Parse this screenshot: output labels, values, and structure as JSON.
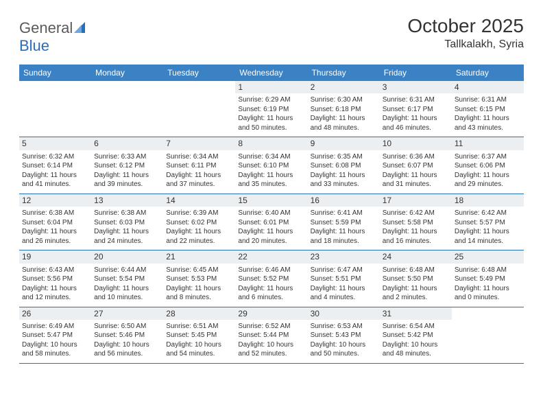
{
  "logo": {
    "text_general": "General",
    "text_blue": "Blue"
  },
  "header": {
    "month_title": "October 2025",
    "location": "Tallkalakh, Syria"
  },
  "colors": {
    "header_bg": "#3b82c4",
    "header_text": "#ffffff",
    "daynum_bg": "#eceff1",
    "border": "#2a6db8",
    "text": "#333333",
    "logo_gray": "#5a5a5a",
    "logo_blue": "#2a6db8",
    "page_bg": "#ffffff"
  },
  "day_names": [
    "Sunday",
    "Monday",
    "Tuesday",
    "Wednesday",
    "Thursday",
    "Friday",
    "Saturday"
  ],
  "weeks": [
    [
      {
        "blank": true
      },
      {
        "blank": true
      },
      {
        "blank": true
      },
      {
        "day": "1",
        "sunrise": "Sunrise: 6:29 AM",
        "sunset": "Sunset: 6:19 PM",
        "daylight1": "Daylight: 11 hours",
        "daylight2": "and 50 minutes."
      },
      {
        "day": "2",
        "sunrise": "Sunrise: 6:30 AM",
        "sunset": "Sunset: 6:18 PM",
        "daylight1": "Daylight: 11 hours",
        "daylight2": "and 48 minutes."
      },
      {
        "day": "3",
        "sunrise": "Sunrise: 6:31 AM",
        "sunset": "Sunset: 6:17 PM",
        "daylight1": "Daylight: 11 hours",
        "daylight2": "and 46 minutes."
      },
      {
        "day": "4",
        "sunrise": "Sunrise: 6:31 AM",
        "sunset": "Sunset: 6:15 PM",
        "daylight1": "Daylight: 11 hours",
        "daylight2": "and 43 minutes."
      }
    ],
    [
      {
        "day": "5",
        "sunrise": "Sunrise: 6:32 AM",
        "sunset": "Sunset: 6:14 PM",
        "daylight1": "Daylight: 11 hours",
        "daylight2": "and 41 minutes."
      },
      {
        "day": "6",
        "sunrise": "Sunrise: 6:33 AM",
        "sunset": "Sunset: 6:12 PM",
        "daylight1": "Daylight: 11 hours",
        "daylight2": "and 39 minutes."
      },
      {
        "day": "7",
        "sunrise": "Sunrise: 6:34 AM",
        "sunset": "Sunset: 6:11 PM",
        "daylight1": "Daylight: 11 hours",
        "daylight2": "and 37 minutes."
      },
      {
        "day": "8",
        "sunrise": "Sunrise: 6:34 AM",
        "sunset": "Sunset: 6:10 PM",
        "daylight1": "Daylight: 11 hours",
        "daylight2": "and 35 minutes."
      },
      {
        "day": "9",
        "sunrise": "Sunrise: 6:35 AM",
        "sunset": "Sunset: 6:08 PM",
        "daylight1": "Daylight: 11 hours",
        "daylight2": "and 33 minutes."
      },
      {
        "day": "10",
        "sunrise": "Sunrise: 6:36 AM",
        "sunset": "Sunset: 6:07 PM",
        "daylight1": "Daylight: 11 hours",
        "daylight2": "and 31 minutes."
      },
      {
        "day": "11",
        "sunrise": "Sunrise: 6:37 AM",
        "sunset": "Sunset: 6:06 PM",
        "daylight1": "Daylight: 11 hours",
        "daylight2": "and 29 minutes."
      }
    ],
    [
      {
        "day": "12",
        "sunrise": "Sunrise: 6:38 AM",
        "sunset": "Sunset: 6:04 PM",
        "daylight1": "Daylight: 11 hours",
        "daylight2": "and 26 minutes."
      },
      {
        "day": "13",
        "sunrise": "Sunrise: 6:38 AM",
        "sunset": "Sunset: 6:03 PM",
        "daylight1": "Daylight: 11 hours",
        "daylight2": "and 24 minutes."
      },
      {
        "day": "14",
        "sunrise": "Sunrise: 6:39 AM",
        "sunset": "Sunset: 6:02 PM",
        "daylight1": "Daylight: 11 hours",
        "daylight2": "and 22 minutes."
      },
      {
        "day": "15",
        "sunrise": "Sunrise: 6:40 AM",
        "sunset": "Sunset: 6:01 PM",
        "daylight1": "Daylight: 11 hours",
        "daylight2": "and 20 minutes."
      },
      {
        "day": "16",
        "sunrise": "Sunrise: 6:41 AM",
        "sunset": "Sunset: 5:59 PM",
        "daylight1": "Daylight: 11 hours",
        "daylight2": "and 18 minutes."
      },
      {
        "day": "17",
        "sunrise": "Sunrise: 6:42 AM",
        "sunset": "Sunset: 5:58 PM",
        "daylight1": "Daylight: 11 hours",
        "daylight2": "and 16 minutes."
      },
      {
        "day": "18",
        "sunrise": "Sunrise: 6:42 AM",
        "sunset": "Sunset: 5:57 PM",
        "daylight1": "Daylight: 11 hours",
        "daylight2": "and 14 minutes."
      }
    ],
    [
      {
        "day": "19",
        "sunrise": "Sunrise: 6:43 AM",
        "sunset": "Sunset: 5:56 PM",
        "daylight1": "Daylight: 11 hours",
        "daylight2": "and 12 minutes."
      },
      {
        "day": "20",
        "sunrise": "Sunrise: 6:44 AM",
        "sunset": "Sunset: 5:54 PM",
        "daylight1": "Daylight: 11 hours",
        "daylight2": "and 10 minutes."
      },
      {
        "day": "21",
        "sunrise": "Sunrise: 6:45 AM",
        "sunset": "Sunset: 5:53 PM",
        "daylight1": "Daylight: 11 hours",
        "daylight2": "and 8 minutes."
      },
      {
        "day": "22",
        "sunrise": "Sunrise: 6:46 AM",
        "sunset": "Sunset: 5:52 PM",
        "daylight1": "Daylight: 11 hours",
        "daylight2": "and 6 minutes."
      },
      {
        "day": "23",
        "sunrise": "Sunrise: 6:47 AM",
        "sunset": "Sunset: 5:51 PM",
        "daylight1": "Daylight: 11 hours",
        "daylight2": "and 4 minutes."
      },
      {
        "day": "24",
        "sunrise": "Sunrise: 6:48 AM",
        "sunset": "Sunset: 5:50 PM",
        "daylight1": "Daylight: 11 hours",
        "daylight2": "and 2 minutes."
      },
      {
        "day": "25",
        "sunrise": "Sunrise: 6:48 AM",
        "sunset": "Sunset: 5:49 PM",
        "daylight1": "Daylight: 11 hours",
        "daylight2": "and 0 minutes."
      }
    ],
    [
      {
        "day": "26",
        "sunrise": "Sunrise: 6:49 AM",
        "sunset": "Sunset: 5:47 PM",
        "daylight1": "Daylight: 10 hours",
        "daylight2": "and 58 minutes."
      },
      {
        "day": "27",
        "sunrise": "Sunrise: 6:50 AM",
        "sunset": "Sunset: 5:46 PM",
        "daylight1": "Daylight: 10 hours",
        "daylight2": "and 56 minutes."
      },
      {
        "day": "28",
        "sunrise": "Sunrise: 6:51 AM",
        "sunset": "Sunset: 5:45 PM",
        "daylight1": "Daylight: 10 hours",
        "daylight2": "and 54 minutes."
      },
      {
        "day": "29",
        "sunrise": "Sunrise: 6:52 AM",
        "sunset": "Sunset: 5:44 PM",
        "daylight1": "Daylight: 10 hours",
        "daylight2": "and 52 minutes."
      },
      {
        "day": "30",
        "sunrise": "Sunrise: 6:53 AM",
        "sunset": "Sunset: 5:43 PM",
        "daylight1": "Daylight: 10 hours",
        "daylight2": "and 50 minutes."
      },
      {
        "day": "31",
        "sunrise": "Sunrise: 6:54 AM",
        "sunset": "Sunset: 5:42 PM",
        "daylight1": "Daylight: 10 hours",
        "daylight2": "and 48 minutes."
      },
      {
        "blank": true
      }
    ]
  ]
}
